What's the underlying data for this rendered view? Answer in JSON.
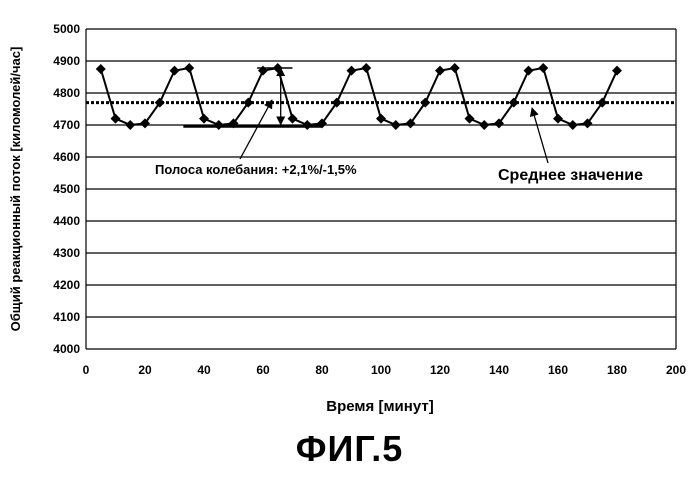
{
  "chart_data": {
    "type": "line",
    "title": "",
    "xlabel": "Время [минут]",
    "ylabel": "Общий реакционный поток [киломолей/час]",
    "xlim": [
      0,
      200
    ],
    "ylim": [
      4000,
      5000
    ],
    "x_ticks": [
      "0",
      "20",
      "40",
      "60",
      "80",
      "100",
      "120",
      "140",
      "160",
      "180",
      "200"
    ],
    "y_ticks": [
      "4000",
      "4100",
      "4200",
      "4300",
      "4400",
      "4500",
      "4600",
      "4700",
      "4800",
      "4900",
      "5000"
    ],
    "grid": "horizontal",
    "series": [
      {
        "name": "",
        "color": "#000000",
        "marker": "diamond",
        "x": [
          5,
          10,
          15,
          20,
          25,
          30,
          35,
          40,
          45,
          50,
          55,
          60,
          65,
          70,
          75,
          80,
          85,
          90,
          95,
          100,
          105,
          110,
          115,
          120,
          125,
          130,
          135,
          140,
          145,
          150,
          155,
          160,
          165,
          170,
          175,
          180
        ],
        "y": [
          4875,
          4720,
          4700,
          4705,
          4770,
          4870,
          4878,
          4720,
          4700,
          4705,
          4770,
          4870,
          4878,
          4720,
          4700,
          4705,
          4770,
          4870,
          4878,
          4720,
          4700,
          4705,
          4770,
          4870,
          4878,
          4720,
          4700,
          4705,
          4770,
          4870,
          4878,
          4720,
          4700,
          4705,
          4770,
          4870
        ]
      }
    ],
    "mean_line": {
      "value": 4770,
      "style": "dotted"
    },
    "band_lines": {
      "upper": 4878,
      "lower": 4695,
      "x_start": 33,
      "x_end": 80
    },
    "annotations": [
      {
        "text": "Полоса колебания: +2,1%/-1,5%"
      },
      {
        "text": "Среднее значение"
      }
    ]
  },
  "figure_caption": "ФИГ.5"
}
